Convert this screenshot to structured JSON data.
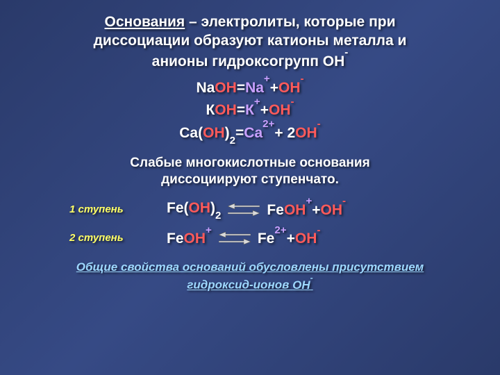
{
  "colors": {
    "white": "#ffffff",
    "yellow": "#ffff66",
    "red": "#ff5a5a",
    "purple": "#c9a0ff",
    "lightblue": "#9ed8ff",
    "arrowfill": "#d9d9d9",
    "arrowstroke": "#555555"
  },
  "fontsizes": {
    "title": 21,
    "equation": 21,
    "subheading": 19,
    "step_label": 15,
    "footer": 17
  },
  "title": {
    "underlined": "Основания",
    "rest_line1": " – электролиты, которые при",
    "line2": "диссоциации образуют катионы металла и",
    "line3_prefix": "анионы гидроксогрупп ",
    "line3_oh": "ОН",
    "line3_sup": "-"
  },
  "equations": [
    {
      "parts": [
        {
          "t": "Na",
          "c": "white"
        },
        {
          "t": "OH",
          "c": "red"
        },
        {
          "t": " = ",
          "c": "white"
        },
        {
          "t": "Na",
          "c": "purple"
        },
        {
          "t": "+",
          "c": "purple",
          "sup": true
        },
        {
          "t": " + ",
          "c": "white"
        },
        {
          "t": "OH",
          "c": "red"
        },
        {
          "t": "-",
          "c": "red",
          "sup": true
        }
      ]
    },
    {
      "parts": [
        {
          "t": "К",
          "c": "white"
        },
        {
          "t": "OH",
          "c": "red"
        },
        {
          "t": " = ",
          "c": "white"
        },
        {
          "t": "К",
          "c": "purple"
        },
        {
          "t": "+",
          "c": "purple",
          "sup": true
        },
        {
          "t": " + ",
          "c": "white"
        },
        {
          "t": "OH",
          "c": "red"
        },
        {
          "t": "-",
          "c": "red",
          "sup": true
        }
      ]
    },
    {
      "parts": [
        {
          "t": "Ca",
          "c": "white"
        },
        {
          "t": "(",
          "c": "white"
        },
        {
          "t": "OH",
          "c": "red"
        },
        {
          "t": ")",
          "c": "white"
        },
        {
          "t": "2",
          "c": "white",
          "sub": true
        },
        {
          "t": " = ",
          "c": "white"
        },
        {
          "t": "Ca",
          "c": "purple"
        },
        {
          "t": "2+",
          "c": "purple",
          "sup": true
        },
        {
          "t": " + 2",
          "c": "white"
        },
        {
          "t": "OH",
          "c": "red"
        },
        {
          "t": "-",
          "c": "red",
          "sup": true
        }
      ]
    }
  ],
  "subheading": {
    "line1": "Слабые многокислотные основания",
    "line2": "диссоциируют ступенчато."
  },
  "steps": [
    {
      "label": "1 ступень",
      "left": [
        {
          "t": "Fe",
          "c": "white"
        },
        {
          "t": "(",
          "c": "white"
        },
        {
          "t": "OH",
          "c": "red"
        },
        {
          "t": ")",
          "c": "white"
        },
        {
          "t": "2",
          "c": "white",
          "sub": true
        }
      ],
      "right": [
        {
          "t": "Fe",
          "c": "white"
        },
        {
          "t": "OH",
          "c": "red"
        },
        {
          "t": "+",
          "c": "purple",
          "sup": true
        },
        {
          "t": " + ",
          "c": "white"
        },
        {
          "t": "OH",
          "c": "red"
        },
        {
          "t": "-",
          "c": "red",
          "sup": true
        }
      ]
    },
    {
      "label": "2 ступень",
      "left": [
        {
          "t": "Fe",
          "c": "white"
        },
        {
          "t": "OH",
          "c": "red"
        },
        {
          "t": "+",
          "c": "purple",
          "sup": true
        }
      ],
      "right": [
        {
          "t": "Fe",
          "c": "white"
        },
        {
          "t": "2+",
          "c": "purple",
          "sup": true
        },
        {
          "t": " + ",
          "c": "white"
        },
        {
          "t": "OH",
          "c": "red"
        },
        {
          "t": "-",
          "c": "red",
          "sup": true
        }
      ]
    }
  ],
  "footer": {
    "line1": "Общие свойства оснований обусловлены присутствием",
    "line2_prefix": "гидроксид-ионов ",
    "line2_oh": "ОН",
    "line2_sup": "-"
  }
}
